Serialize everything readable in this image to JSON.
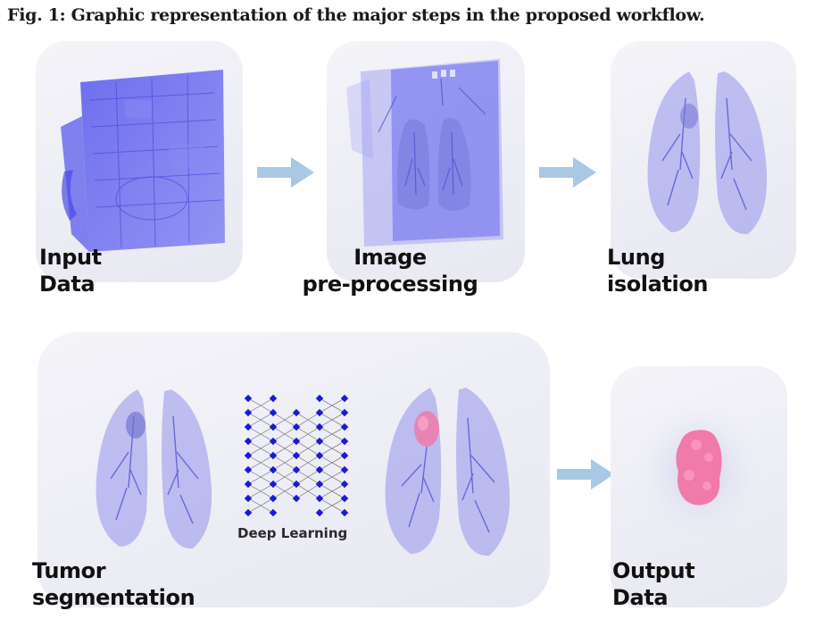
{
  "figure": {
    "caption": "Fig. 1: Graphic representation of the major steps in the proposed workflow."
  },
  "steps": {
    "input": {
      "label": "Input\nData"
    },
    "preprocessing": {
      "label": "Image\npre-processing"
    },
    "lung_isolation": {
      "label": "Lung\nisolation"
    },
    "tumor_segmentation": {
      "label": "Tumor\nsegmentation",
      "network_label": "Deep Learning"
    },
    "output": {
      "label": "Output\nData"
    }
  },
  "colors": {
    "volume": "#6a6af0",
    "lung": "#8a8ae8",
    "tumor": "#f07aa8",
    "arrow": "#a9c8e4",
    "node": "#1a1ad8"
  }
}
